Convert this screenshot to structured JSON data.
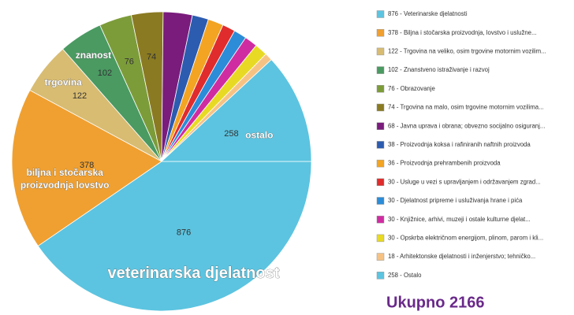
{
  "chart_data": {
    "type": "pie",
    "total_label": "Ukupno 2166",
    "categories": [
      "876 - Veterinarske djelatnosti",
      "378 - Biljna i stočarska proizvodnja, lovstvo i uslužne...",
      "122 - Trgovina na veliko, osim trgovine motornim vozilim...",
      "102 - Znanstveno istraživanje i razvoj",
      "76 - Obrazovanje",
      "74 - Trgovina na malo, osim trgovine motornim vozilima...",
      "68 - Javna uprava i obrana; obvezno socijalno osiguranj...",
      "38 - Proizvodnja koksa i rafiniranih naftnih proizvoda",
      "36 - Proizvodnja prehrambenih proizvoda",
      "30 - Usluge u vezi s upravljanjem i održavanjem zgrad...",
      "30 - Djelatnost pripreme i usluživanja hrane i pića",
      "30 - Knjižnice, arhivi, muzeji i ostale kulturne djelat...",
      "30 - Opskrba električnom energijom, plinom, parom i kli...",
      "18 - Arhitektonske djelatnosti i inženjerstvo; tehničko...",
      "258 - Ostalo"
    ],
    "values": [
      876,
      378,
      122,
      102,
      76,
      74,
      68,
      38,
      36,
      30,
      30,
      30,
      30,
      18,
      258
    ],
    "colors": [
      "#5cc4e0",
      "#f0a030",
      "#d8bc72",
      "#4a9a62",
      "#7c9c3a",
      "#8a7a22",
      "#7a1c7c",
      "#2c5cb0",
      "#f2a422",
      "#e02c2c",
      "#2c8cd8",
      "#d02ca2",
      "#e8da24",
      "#f6c284",
      "#5cc4e0"
    ],
    "slice_labels": [
      "veterinarska djelatnost",
      [
        "biljna i stočarska",
        "proizvodnja  lovstvo"
      ],
      "trgovina",
      "znanost",
      null,
      null,
      null,
      null,
      null,
      null,
      null,
      null,
      null,
      null,
      "ostalo"
    ]
  }
}
